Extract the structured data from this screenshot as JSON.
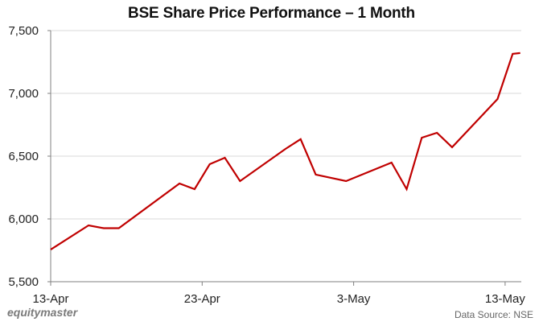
{
  "title": "BSE Share Price Performance – 1 Month",
  "footer": {
    "brand": "equitymaster",
    "source": "Data Source: NSE"
  },
  "colors": {
    "line": "#c00000",
    "grid": "#d9d9d9",
    "axis": "#808080"
  },
  "chart_data": {
    "type": "line",
    "title": "BSE Share Price Performance – 1 Month",
    "xlabel": "",
    "ylabel": "",
    "ylim": [
      5500,
      7500
    ],
    "yticks": [
      5500,
      6000,
      6500,
      7000,
      7500
    ],
    "ytick_labels": [
      "5,500",
      "6,000",
      "6,500",
      "7,000",
      "7,500"
    ],
    "xtick_labels": [
      "13-Apr",
      "23-Apr",
      "3-May",
      "13-May"
    ],
    "xtick_day_offsets": [
      0,
      10,
      20,
      30
    ],
    "grid": {
      "y": true,
      "x": false
    },
    "legend": null,
    "series": [
      {
        "name": "BSE Share Price",
        "day_offsets": [
          0,
          2.5,
          3.5,
          4.5,
          8.5,
          9.5,
          10.5,
          11.5,
          12.5,
          15.5,
          16.5,
          17.5,
          19.5,
          22.5,
          23.5,
          24.5,
          25.5,
          26.5,
          29.5,
          30.5,
          31
        ],
        "values": [
          5756,
          5949,
          5926,
          5926,
          6282,
          6237,
          6436,
          6487,
          6301,
          6558,
          6635,
          6353,
          6301,
          6449,
          6237,
          6647,
          6686,
          6571,
          6955,
          7315,
          7321
        ]
      }
    ]
  }
}
